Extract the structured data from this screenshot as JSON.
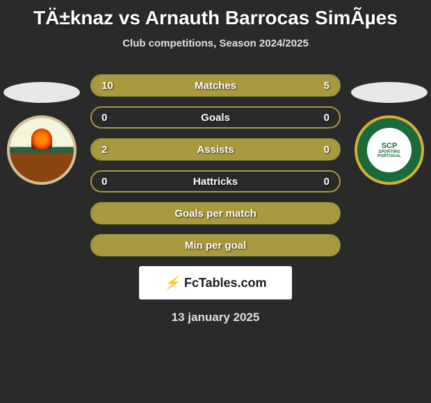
{
  "header": {
    "title": "TÄ±knaz vs Arnauth Barrocas SimÃµes",
    "subtitle": "Club competitions, Season 2024/2025"
  },
  "badges": {
    "left": {
      "name": "Rio Ave",
      "bg_color": "#f5f5dc",
      "border_color": "#d4c099"
    },
    "right": {
      "name": "Sporting CP",
      "label_line1": "SCP",
      "label_line2": "SPORTING",
      "label_line3": "PORTUGAL",
      "bg_color": "#1a6b3a",
      "border_color": "#d4af37"
    }
  },
  "stats": [
    {
      "label": "Matches",
      "left_value": "10",
      "right_value": "5",
      "left_fill_pct": 67,
      "right_fill_pct": 33
    },
    {
      "label": "Goals",
      "left_value": "0",
      "right_value": "0",
      "left_fill_pct": 0,
      "right_fill_pct": 0
    },
    {
      "label": "Assists",
      "left_value": "2",
      "right_value": "0",
      "left_fill_pct": 100,
      "right_fill_pct": 0
    },
    {
      "label": "Hattricks",
      "left_value": "0",
      "right_value": "0",
      "left_fill_pct": 0,
      "right_fill_pct": 0
    },
    {
      "label": "Goals per match",
      "left_value": "",
      "right_value": "",
      "left_fill_pct": 100,
      "right_fill_pct": 0,
      "full_fill": true
    },
    {
      "label": "Min per goal",
      "left_value": "",
      "right_value": "",
      "left_fill_pct": 100,
      "right_fill_pct": 0,
      "full_fill": true
    }
  ],
  "colors": {
    "bar_fill": "#a89a3e",
    "bar_border": "#a89a3e",
    "background": "#2a2a2a",
    "text": "#ffffff"
  },
  "logo": {
    "text": "FcTables.com"
  },
  "date": "13 january 2025"
}
